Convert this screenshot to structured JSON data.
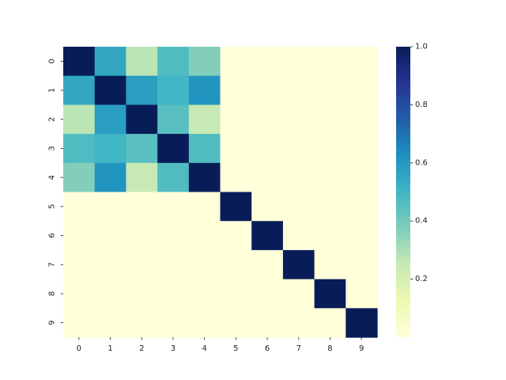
{
  "chart_data": {
    "type": "heatmap",
    "title": "",
    "xlabel": "",
    "ylabel": "",
    "x_categories": [
      "0",
      "1",
      "2",
      "3",
      "4",
      "5",
      "6",
      "7",
      "8",
      "9"
    ],
    "y_categories": [
      "0",
      "1",
      "2",
      "3",
      "4",
      "5",
      "6",
      "7",
      "8",
      "9"
    ],
    "values": [
      [
        1.0,
        0.55,
        0.27,
        0.47,
        0.37,
        0,
        0,
        0,
        0,
        0
      ],
      [
        0.55,
        1.0,
        0.58,
        0.5,
        0.61,
        0,
        0,
        0,
        0,
        0
      ],
      [
        0.27,
        0.58,
        1.0,
        0.45,
        0.25,
        0,
        0,
        0,
        0,
        0
      ],
      [
        0.47,
        0.5,
        0.45,
        1.0,
        0.47,
        0,
        0,
        0,
        0,
        0
      ],
      [
        0.37,
        0.61,
        0.25,
        0.47,
        1.0,
        0,
        0,
        0,
        0,
        0
      ],
      [
        0,
        0,
        0,
        0,
        0,
        1.0,
        0,
        0,
        0,
        0
      ],
      [
        0,
        0,
        0,
        0,
        0,
        0,
        1.0,
        0,
        0,
        0
      ],
      [
        0,
        0,
        0,
        0,
        0,
        0,
        0,
        1.0,
        0,
        0
      ],
      [
        0,
        0,
        0,
        0,
        0,
        0,
        0,
        0,
        1.0,
        0
      ],
      [
        0,
        0,
        0,
        0,
        0,
        0,
        0,
        0,
        0,
        1.0
      ]
    ],
    "colormap": "YlGnBu",
    "colormap_stops": [
      "#ffffd9",
      "#edf8b1",
      "#c7e9b4",
      "#7fcdbb",
      "#41b6c4",
      "#1d91c0",
      "#225ea8",
      "#253494",
      "#081d58"
    ],
    "vmin": 0,
    "vmax": 1,
    "colorbar": {
      "position": "right",
      "ticks": [
        0.2,
        0.4,
        0.6,
        0.8
      ],
      "tick_labels": [
        "0.2",
        "0.4",
        "0.6",
        "0.8"
      ],
      "max_tick": 1.0,
      "max_tick_label": "1.0"
    },
    "grid": false
  }
}
